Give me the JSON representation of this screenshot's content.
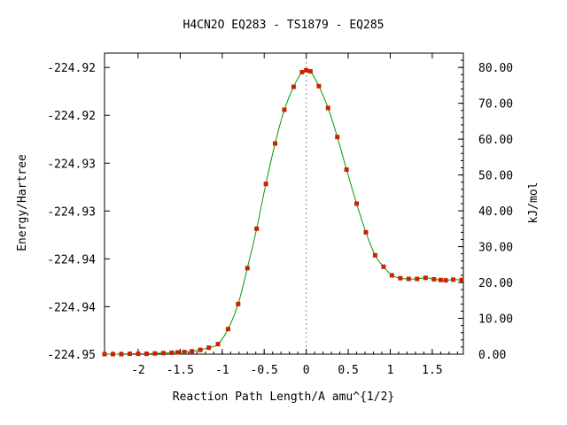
{
  "chart_data": {
    "type": "line",
    "title": "H4CN2O   EQ283 - TS1879 - EQ285",
    "xlabel": "Reaction Path Length/A amu^{1/2}",
    "ylabel": "Energy/Hartree",
    "y2label": "kJ/mol",
    "xlim": [
      -2.4,
      1.87
    ],
    "y2lim": [
      0,
      84
    ],
    "x_tick_labels": [
      "-2",
      "-1.5",
      "-1",
      "-0.5",
      "0",
      "0.5",
      "1",
      "1.5"
    ],
    "x_ticks": [
      -2,
      -1.5,
      -1,
      -0.5,
      0,
      0.5,
      1,
      1.5
    ],
    "y_tick_labels": [
      "-224.92",
      "-224.92",
      "-224.93",
      "-224.93",
      "-224.94",
      "-224.94",
      "-224.95"
    ],
    "y_tick_values_kj": [
      80,
      66.65,
      53.3,
      39.95,
      26.6,
      13.25,
      0
    ],
    "y2_tick_labels": [
      "80.00",
      "70.00",
      "60.00",
      "50.00",
      "40.00",
      "30.00",
      "20.00",
      "10.00",
      "0.00"
    ],
    "y2_ticks": [
      80,
      70,
      60,
      50,
      40,
      30,
      20,
      10,
      0
    ],
    "ts_x": 0,
    "series": [
      {
        "color": "#009900",
        "marker_color": "#cc2200",
        "x": [
          -2.4,
          -2.3,
          -2.2,
          -2.1,
          -2.0,
          -1.9,
          -1.8,
          -1.7,
          -1.6,
          -1.53,
          -1.45,
          -1.36,
          -1.26,
          -1.16,
          -1.05,
          -0.93,
          -0.81,
          -0.7,
          -0.59,
          -0.48,
          -0.37,
          -0.26,
          -0.15,
          -0.05,
          0.0,
          0.05,
          0.15,
          0.26,
          0.37,
          0.48,
          0.6,
          0.71,
          0.82,
          0.92,
          1.02,
          1.12,
          1.22,
          1.32,
          1.42,
          1.52,
          1.6,
          1.66,
          1.75,
          1.85
        ],
        "y": [
          0.0,
          0.0,
          0.0,
          0.1,
          0.1,
          0.1,
          0.2,
          0.3,
          0.4,
          0.5,
          0.6,
          0.8,
          1.2,
          1.8,
          2.8,
          7.0,
          14.0,
          24.0,
          35.0,
          47.5,
          58.8,
          68.2,
          74.6,
          78.7,
          79.2,
          78.9,
          74.8,
          68.7,
          60.6,
          51.5,
          42.0,
          34.0,
          27.6,
          24.4,
          22.0,
          21.2,
          21.0,
          21.0,
          21.3,
          20.9,
          20.7,
          20.6,
          20.8,
          20.7
        ]
      }
    ]
  }
}
